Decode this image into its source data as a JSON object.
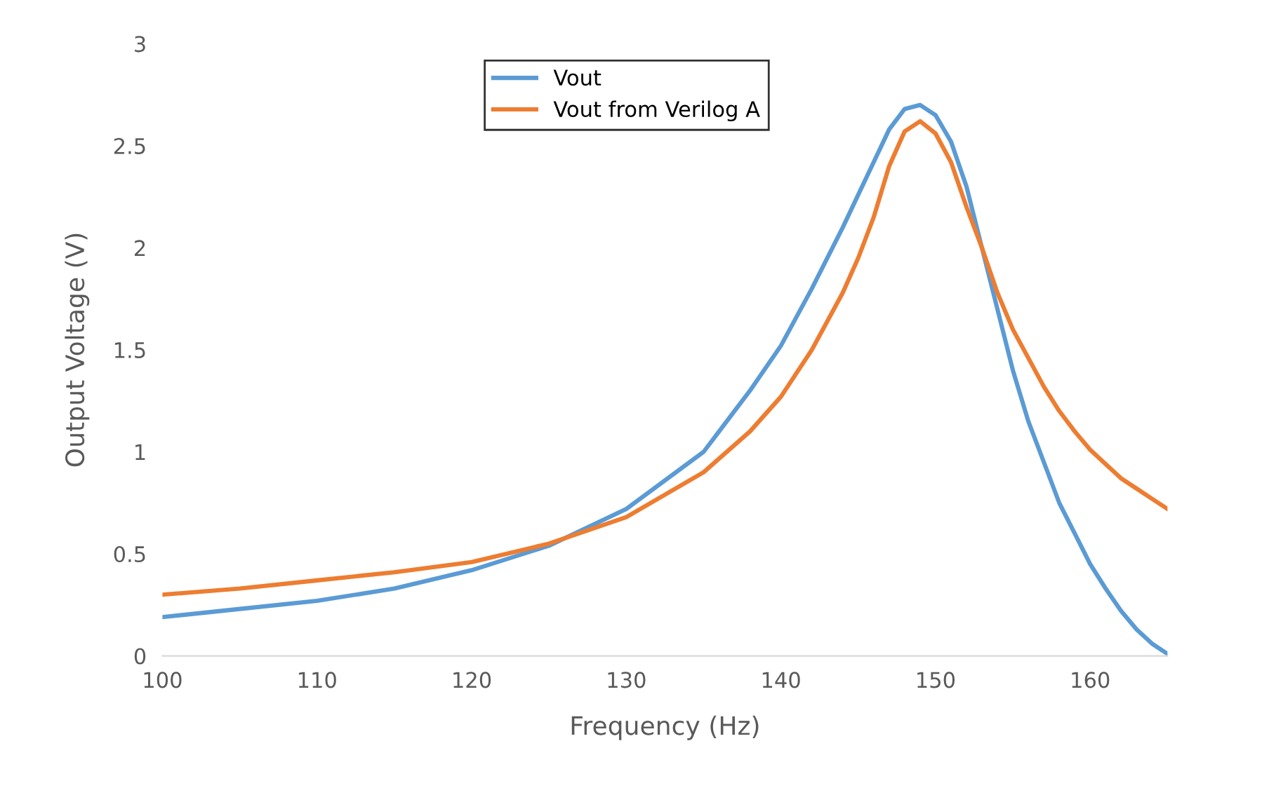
{
  "chart_data": {
    "type": "line",
    "xlabel": "Frequency (Hz)",
    "ylabel": "Output Voltage (V)",
    "xlim": [
      100,
      165
    ],
    "xticks": [
      100,
      110,
      120,
      130,
      140,
      150,
      160
    ],
    "ylim": [
      0,
      3
    ],
    "yticks": [
      0,
      0.5,
      1,
      1.5,
      2,
      2.5,
      3
    ],
    "grid": false,
    "legend": "top",
    "marker": "none",
    "line_style": "solid",
    "series": [
      {
        "name": "Vout",
        "color": "#5b9bd5",
        "x": [
          100,
          105,
          110,
          115,
          120,
          125,
          130,
          135,
          138,
          140,
          142,
          144,
          146,
          147,
          148,
          149,
          150,
          151,
          152,
          153,
          154,
          155,
          156,
          157,
          158,
          159,
          160,
          161,
          162,
          163,
          164,
          165
        ],
        "values": [
          0.19,
          0.23,
          0.27,
          0.33,
          0.42,
          0.54,
          0.72,
          1.0,
          1.3,
          1.52,
          1.8,
          2.1,
          2.42,
          2.58,
          2.68,
          2.7,
          2.65,
          2.52,
          2.3,
          2.0,
          1.7,
          1.4,
          1.15,
          0.95,
          0.75,
          0.6,
          0.45,
          0.33,
          0.22,
          0.13,
          0.06,
          0.01
        ]
      },
      {
        "name": "Vout from Verilog A",
        "color": "#ed7d31",
        "x": [
          100,
          105,
          110,
          115,
          120,
          125,
          130,
          135,
          138,
          140,
          142,
          144,
          145,
          146,
          147,
          148,
          149,
          150,
          151,
          152,
          153,
          154,
          155,
          156,
          157,
          158,
          159,
          160,
          161,
          162,
          163,
          164,
          165
        ],
        "values": [
          0.3,
          0.33,
          0.37,
          0.41,
          0.46,
          0.55,
          0.68,
          0.9,
          1.1,
          1.27,
          1.5,
          1.78,
          1.95,
          2.15,
          2.4,
          2.57,
          2.62,
          2.56,
          2.42,
          2.2,
          2.0,
          1.78,
          1.6,
          1.46,
          1.32,
          1.2,
          1.1,
          1.01,
          0.94,
          0.87,
          0.82,
          0.77,
          0.72
        ]
      }
    ]
  }
}
